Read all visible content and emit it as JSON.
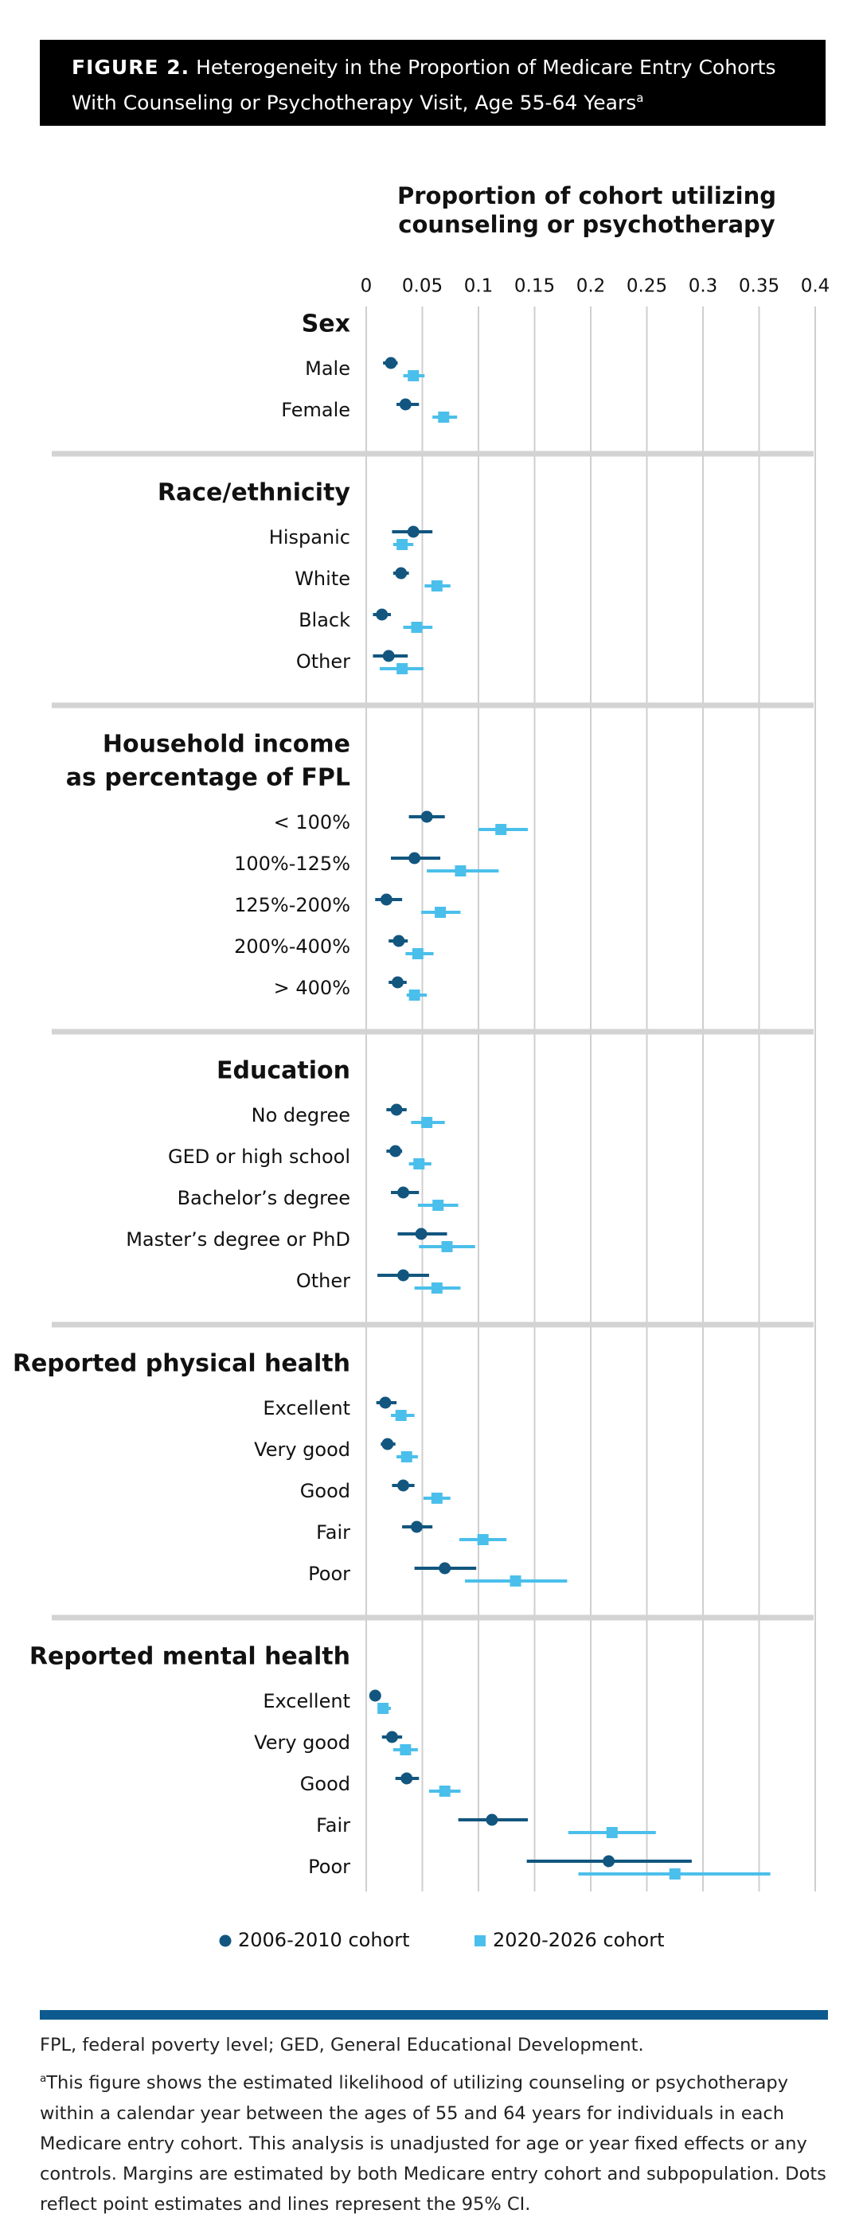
{
  "chart_data": {
    "type": "forest",
    "figure_label": "FIGURE 2.",
    "title": "Heterogeneity in the Proportion of Medicare Entry Cohorts With Counseling or Psychotherapy Visit, Age 55-64 Years",
    "title_marker": "a",
    "x_label": [
      "Proportion of cohort utilizing",
      "counseling or psychotherapy"
    ],
    "xlim": [
      0,
      0.4
    ],
    "xticks": [
      0,
      0.05,
      0.1,
      0.15,
      0.2,
      0.25,
      0.3,
      0.35,
      0.4
    ],
    "grid": true,
    "series": [
      {
        "name": "2006-2010 cohort",
        "color": "#12567f",
        "marker": "circle"
      },
      {
        "name": "2020-2026 cohort",
        "color": "#4bbfeb",
        "marker": "square"
      }
    ],
    "groups": [
      {
        "title": [
          "Sex"
        ],
        "rows": [
          {
            "label": "Male",
            "values": [
              0.022,
              0.042
            ],
            "lower": [
              0.015,
              0.033
            ],
            "upper": [
              0.028,
              0.052
            ]
          },
          {
            "label": "Female",
            "values": [
              0.035,
              0.069
            ],
            "lower": [
              0.027,
              0.059
            ],
            "upper": [
              0.047,
              0.081
            ]
          }
        ]
      },
      {
        "title": [
          "Race/ethnicity"
        ],
        "rows": [
          {
            "label": "Hispanic",
            "values": [
              0.042,
              0.032
            ],
            "lower": [
              0.023,
              0.024
            ],
            "upper": [
              0.059,
              0.042
            ]
          },
          {
            "label": "White",
            "values": [
              0.031,
              0.063
            ],
            "lower": [
              0.024,
              0.052
            ],
            "upper": [
              0.038,
              0.075
            ]
          },
          {
            "label": "Black",
            "values": [
              0.014,
              0.045
            ],
            "lower": [
              0.006,
              0.033
            ],
            "upper": [
              0.022,
              0.059
            ]
          },
          {
            "label": "Other",
            "values": [
              0.02,
              0.032
            ],
            "lower": [
              0.006,
              0.012
            ],
            "upper": [
              0.037,
              0.051
            ]
          }
        ]
      },
      {
        "title": [
          "Household income",
          "as percentage of FPL"
        ],
        "rows": [
          {
            "label": "< 100%",
            "values": [
              0.054,
              0.12
            ],
            "lower": [
              0.038,
              0.1
            ],
            "upper": [
              0.07,
              0.144
            ]
          },
          {
            "label": "100%-125%",
            "values": [
              0.043,
              0.084
            ],
            "lower": [
              0.022,
              0.054
            ],
            "upper": [
              0.066,
              0.118
            ]
          },
          {
            "label": "125%-200%",
            "values": [
              0.018,
              0.066
            ],
            "lower": [
              0.008,
              0.049
            ],
            "upper": [
              0.032,
              0.084
            ]
          },
          {
            "label": "200%-400%",
            "values": [
              0.029,
              0.046
            ],
            "lower": [
              0.02,
              0.035
            ],
            "upper": [
              0.037,
              0.06
            ]
          },
          {
            "label": "> 400%",
            "values": [
              0.028,
              0.043
            ],
            "lower": [
              0.02,
              0.036
            ],
            "upper": [
              0.036,
              0.054
            ]
          }
        ]
      },
      {
        "title": [
          "Education"
        ],
        "rows": [
          {
            "label": "No degree",
            "values": [
              0.027,
              0.054
            ],
            "lower": [
              0.018,
              0.04
            ],
            "upper": [
              0.036,
              0.07
            ]
          },
          {
            "label": "GED or high school",
            "values": [
              0.026,
              0.047
            ],
            "lower": [
              0.018,
              0.038
            ],
            "upper": [
              0.032,
              0.058
            ]
          },
          {
            "label": "Bachelor’s degree",
            "values": [
              0.033,
              0.064
            ],
            "lower": [
              0.022,
              0.046
            ],
            "upper": [
              0.047,
              0.082
            ]
          },
          {
            "label": "Master’s degree or PhD",
            "values": [
              0.049,
              0.072
            ],
            "lower": [
              0.028,
              0.047
            ],
            "upper": [
              0.072,
              0.097
            ]
          },
          {
            "label": "Other",
            "values": [
              0.033,
              0.063
            ],
            "lower": [
              0.01,
              0.043
            ],
            "upper": [
              0.056,
              0.084
            ]
          }
        ]
      },
      {
        "title": [
          "Reported physical health"
        ],
        "rows": [
          {
            "label": "Excellent",
            "values": [
              0.017,
              0.031
            ],
            "lower": [
              0.009,
              0.022
            ],
            "upper": [
              0.027,
              0.043
            ]
          },
          {
            "label": "Very good",
            "values": [
              0.019,
              0.036
            ],
            "lower": [
              0.013,
              0.027
            ],
            "upper": [
              0.026,
              0.046
            ]
          },
          {
            "label": "Good",
            "values": [
              0.033,
              0.063
            ],
            "lower": [
              0.023,
              0.051
            ],
            "upper": [
              0.043,
              0.075
            ]
          },
          {
            "label": "Fair",
            "values": [
              0.045,
              0.104
            ],
            "lower": [
              0.032,
              0.083
            ],
            "upper": [
              0.059,
              0.125
            ]
          },
          {
            "label": "Poor",
            "values": [
              0.07,
              0.133
            ],
            "lower": [
              0.043,
              0.088
            ],
            "upper": [
              0.098,
              0.179
            ]
          }
        ]
      },
      {
        "title": [
          "Reported mental health"
        ],
        "rows": [
          {
            "label": "Excellent",
            "values": [
              0.008,
              0.015
            ],
            "lower": [
              0.003,
              0.01
            ],
            "upper": [
              0.013,
              0.022
            ]
          },
          {
            "label": "Very good",
            "values": [
              0.023,
              0.035
            ],
            "lower": [
              0.014,
              0.024
            ],
            "upper": [
              0.032,
              0.046
            ]
          },
          {
            "label": "Good",
            "values": [
              0.036,
              0.07
            ],
            "lower": [
              0.026,
              0.056
            ],
            "upper": [
              0.047,
              0.084
            ]
          },
          {
            "label": "Fair",
            "values": [
              0.112,
              0.219
            ],
            "lower": [
              0.082,
              0.18
            ],
            "upper": [
              0.144,
              0.258
            ]
          },
          {
            "label": "Poor",
            "values": [
              0.216,
              0.275
            ],
            "lower": [
              0.143,
              0.189
            ],
            "upper": [
              0.29,
              0.36
            ]
          }
        ]
      }
    ],
    "notes": [
      "FPL, federal poverty level; GED, General Educational Development.",
      "This figure shows the estimated likelihood of utilizing counseling or psychotherapy within a calendar year between the ages of 55 and 64 years for individuals in each Medicare entry cohort. This analysis is unadjusted for age or year fixed effects or any controls. Margins are estimated by both Medicare entry cohort and subpopulation. Dots reflect point estimates and lines represent the 95% CI."
    ],
    "note_marker": "a"
  }
}
